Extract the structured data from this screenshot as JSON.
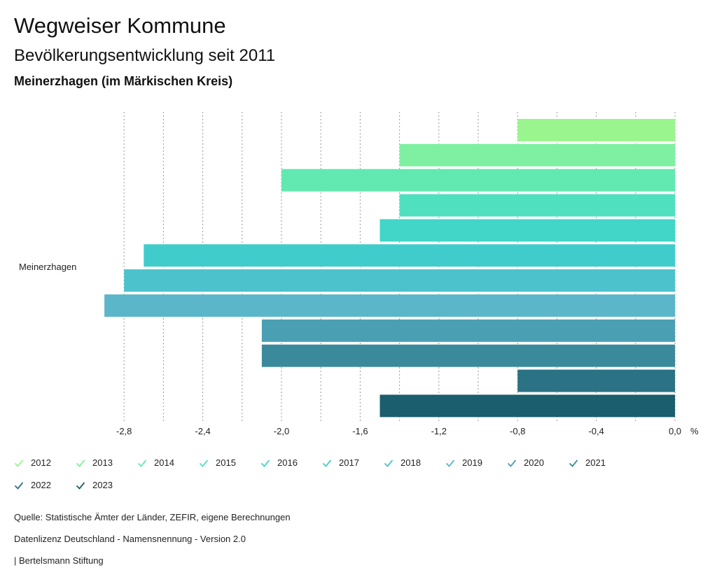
{
  "header": {
    "title": "Wegweiser Kommune",
    "subtitle": "Bevölkerungsentwicklung seit 2011",
    "region": "Meinerzhagen (im Märkischen Kreis)"
  },
  "chart_data": {
    "type": "bar",
    "orientation": "horizontal",
    "categories": [
      "Meinerzhagen"
    ],
    "series": [
      {
        "name": "2012",
        "values": [
          -0.8
        ],
        "color": "#9af58f"
      },
      {
        "name": "2013",
        "values": [
          -1.4
        ],
        "color": "#7ff0a2"
      },
      {
        "name": "2014",
        "values": [
          -2.0
        ],
        "color": "#62e9b1"
      },
      {
        "name": "2015",
        "values": [
          -1.4
        ],
        "color": "#4fe0c0"
      },
      {
        "name": "2016",
        "values": [
          -1.5
        ],
        "color": "#41d6c7"
      },
      {
        "name": "2017",
        "values": [
          -2.7
        ],
        "color": "#41cccc"
      },
      {
        "name": "2018",
        "values": [
          -2.8
        ],
        "color": "#4cc2cc"
      },
      {
        "name": "2019",
        "values": [
          -2.9
        ],
        "color": "#5cb6c9"
      },
      {
        "name": "2020",
        "values": [
          -2.1
        ],
        "color": "#4a9fb3"
      },
      {
        "name": "2021",
        "values": [
          -2.1
        ],
        "color": "#3b8a9b"
      },
      {
        "name": "2022",
        "values": [
          -0.8
        ],
        "color": "#2a7284"
      },
      {
        "name": "2023",
        "values": [
          -1.5
        ],
        "color": "#1b5e6d"
      }
    ],
    "xlim": [
      -3.0,
      0.0
    ],
    "xticks": [
      -2.8,
      -2.4,
      -2.0,
      -1.6,
      -1.2,
      -0.8,
      -0.4,
      0.0
    ],
    "xtick_labels": [
      "-2,8",
      "-2,4",
      "-2,0",
      "-1,6",
      "-1,2",
      "-0,8",
      "-0,4",
      "0,0"
    ],
    "xgrid_minor": [
      -2.6,
      -2.2,
      -1.8,
      -1.4,
      -1.0,
      -0.6,
      -0.2
    ],
    "x_unit": "%",
    "grid": true,
    "legend_position": "bottom"
  },
  "footer": {
    "source": "Quelle: Statistische Ämter der Länder, ZEFIR, eigene Berechnungen",
    "license": "Datenlizenz Deutschland - Namensnennung - Version 2.0",
    "publisher": "| Bertelsmann Stiftung"
  }
}
